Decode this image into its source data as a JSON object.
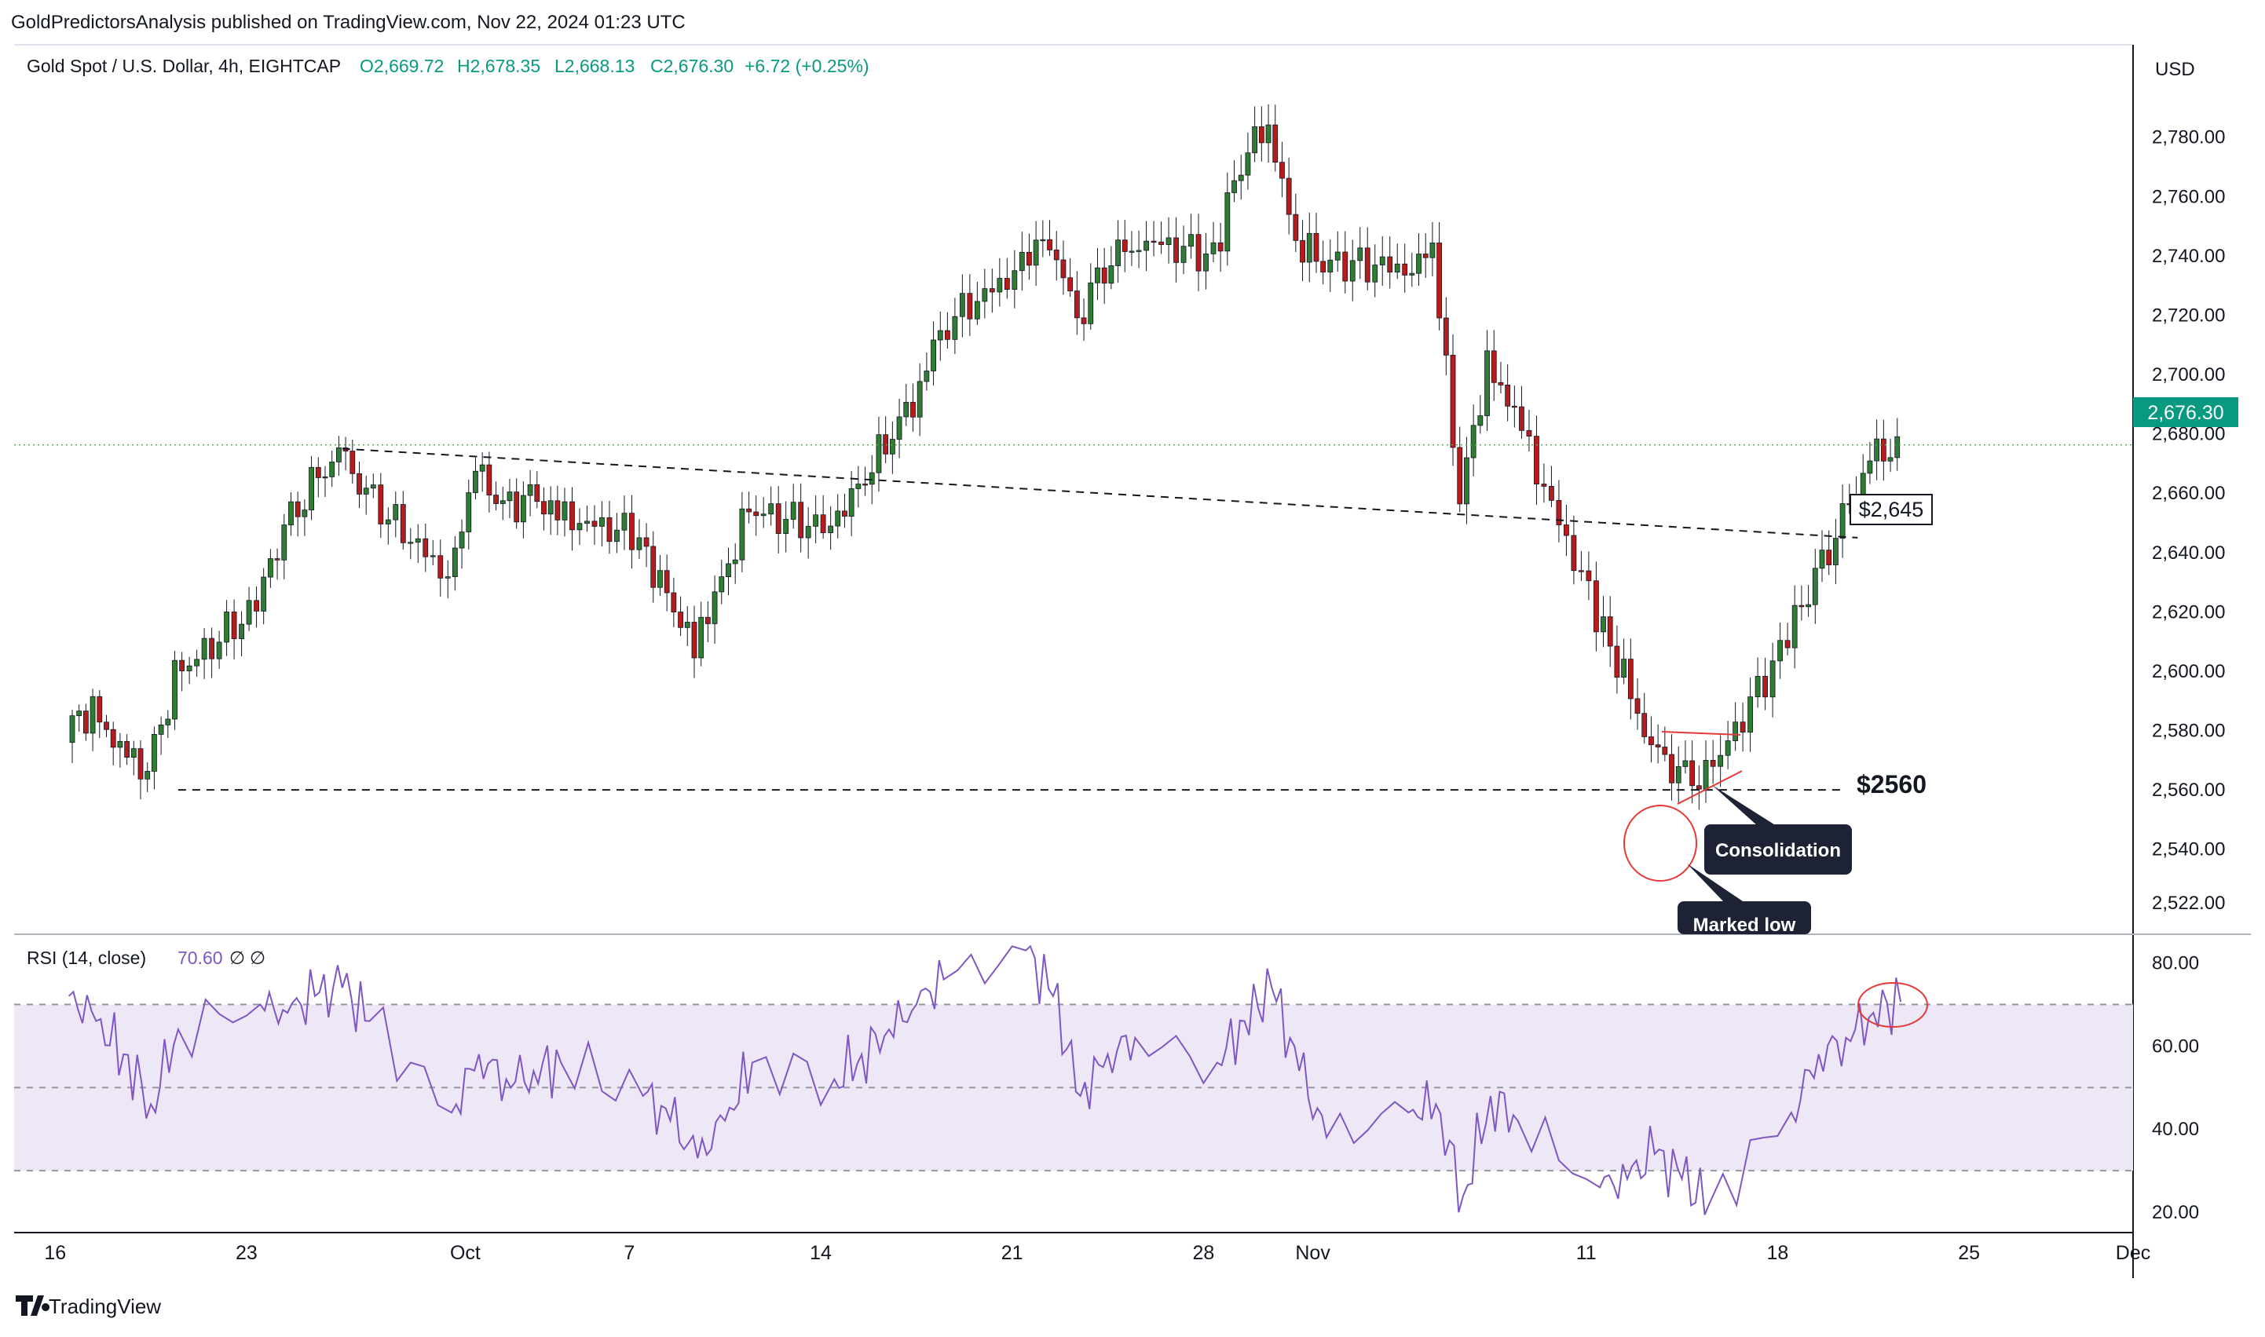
{
  "header": {
    "publisher": "GoldPredictorsAnalysis published on TradingView.com, Nov 22, 2024 01:23 UTC"
  },
  "symbol": {
    "name": "Gold Spot / U.S. Dollar, 4h, EIGHTCAP",
    "open": "O2,669.72",
    "high": "H2,678.35",
    "low": "L2,668.13",
    "close": "C2,676.30",
    "change": "+6.72 (+0.25%)"
  },
  "currency": "USD",
  "last_price_label": "2,676.30",
  "rsi_header": {
    "name": "RSI (14, close)",
    "value": "70.60",
    "extra": [
      "∅",
      "∅"
    ]
  },
  "annotations": {
    "level_2645": "$2,645",
    "level_2560": "$2560",
    "consolidation": "Consolidation",
    "marked_low": "Marked low"
  },
  "footer": {
    "brand": "TradingView"
  },
  "colors": {
    "up": "#26a69a",
    "down": "#ef5350",
    "candle_up": "#2e7d32",
    "candle_down": "#b71c1c",
    "rsi_line": "#7e57c2",
    "rsi_band": "#ede7f6",
    "last_price": "#089981",
    "callout": "#1e2235",
    "highlight_circle": "#e53935",
    "dotted_price": "#4caf50"
  },
  "chart_data": [
    {
      "type": "candlestick",
      "title": "Gold Spot / U.S. Dollar, 4h, EIGHTCAP",
      "ylabel": "USD",
      "ylim": [
        2514,
        2804
      ],
      "y_ticks": [
        "2,522.00",
        "2,540.00",
        "2,560.00",
        "2,580.00",
        "2,600.00",
        "2,620.00",
        "2,640.00",
        "2,660.00",
        "2,680.00",
        "2,700.00",
        "2,720.00",
        "2,740.00",
        "2,760.00",
        "2,780.00"
      ],
      "x_ticks": [
        "16",
        "23",
        "Oct",
        "7",
        "14",
        "21",
        "28",
        "Nov",
        "11",
        "18",
        "25",
        "Dec"
      ],
      "last_price": 2676.3,
      "horizontal_levels": [
        2645,
        2560
      ],
      "price_path": [
        {
          "date": "2024-09-16",
          "close": 2580
        },
        {
          "date": "2024-09-17",
          "close": 2588
        },
        {
          "date": "2024-09-18",
          "close": 2572
        },
        {
          "date": "2024-09-19",
          "close": 2566
        },
        {
          "date": "2024-09-20",
          "close": 2598
        },
        {
          "date": "2024-09-23",
          "close": 2622
        },
        {
          "date": "2024-09-24",
          "close": 2648
        },
        {
          "date": "2024-09-25",
          "close": 2662
        },
        {
          "date": "2024-09-26",
          "close": 2672
        },
        {
          "date": "2024-09-27",
          "close": 2660
        },
        {
          "date": "2024-09-30",
          "close": 2632
        },
        {
          "date": "2024-10-01",
          "close": 2666
        },
        {
          "date": "2024-10-02",
          "close": 2656
        },
        {
          "date": "2024-10-03",
          "close": 2658
        },
        {
          "date": "2024-10-04",
          "close": 2652
        },
        {
          "date": "2024-10-07",
          "close": 2646
        },
        {
          "date": "2024-10-08",
          "close": 2624
        },
        {
          "date": "2024-10-09",
          "close": 2608
        },
        {
          "date": "2024-10-10",
          "close": 2632
        },
        {
          "date": "2024-10-11",
          "close": 2654
        },
        {
          "date": "2024-10-14",
          "close": 2648
        },
        {
          "date": "2024-10-15",
          "close": 2664
        },
        {
          "date": "2024-10-16",
          "close": 2676
        },
        {
          "date": "2024-10-17",
          "close": 2692
        },
        {
          "date": "2024-10-18",
          "close": 2716
        },
        {
          "date": "2024-10-21",
          "close": 2736
        },
        {
          "date": "2024-10-22",
          "close": 2748
        },
        {
          "date": "2024-10-23",
          "close": 2720
        },
        {
          "date": "2024-10-24",
          "close": 2736
        },
        {
          "date": "2024-10-25",
          "close": 2746
        },
        {
          "date": "2024-10-28",
          "close": 2740
        },
        {
          "date": "2024-10-29",
          "close": 2772
        },
        {
          "date": "2024-10-30",
          "close": 2786
        },
        {
          "date": "2024-10-31",
          "close": 2744
        },
        {
          "date": "2024-11-01",
          "close": 2738
        },
        {
          "date": "2024-11-04",
          "close": 2736
        },
        {
          "date": "2024-11-05",
          "close": 2742
        },
        {
          "date": "2024-11-06",
          "close": 2658
        },
        {
          "date": "2024-11-07",
          "close": 2704
        },
        {
          "date": "2024-11-08",
          "close": 2686
        },
        {
          "date": "2024-11-11",
          "close": 2620
        },
        {
          "date": "2024-11-12",
          "close": 2598
        },
        {
          "date": "2024-11-13",
          "close": 2572
        },
        {
          "date": "2024-11-14",
          "close": 2566
        },
        {
          "date": "2024-11-15",
          "close": 2563
        },
        {
          "date": "2024-11-18",
          "close": 2611
        },
        {
          "date": "2024-11-19",
          "close": 2632
        },
        {
          "date": "2024-11-20",
          "close": 2650
        },
        {
          "date": "2024-11-21",
          "close": 2670
        },
        {
          "date": "2024-11-22",
          "close": 2676.3
        }
      ]
    },
    {
      "type": "line",
      "title": "RSI (14, close)",
      "ylim": [
        17,
        85
      ],
      "y_ticks": [
        "20.00",
        "40.00",
        "60.00",
        "80.00"
      ],
      "bands": [
        30,
        50,
        70
      ],
      "last_value": 70.6,
      "series": [
        {
          "values": [
            {
              "date": "2024-09-16",
              "value": 72
            },
            {
              "date": "2024-09-17",
              "value": 66
            },
            {
              "date": "2024-09-18",
              "value": 58
            },
            {
              "date": "2024-09-19",
              "value": 46
            },
            {
              "date": "2024-09-20",
              "value": 64
            },
            {
              "date": "2024-09-23",
              "value": 70
            },
            {
              "date": "2024-09-24",
              "value": 68
            },
            {
              "date": "2024-09-25",
              "value": 72
            },
            {
              "date": "2024-09-26",
              "value": 74
            },
            {
              "date": "2024-09-27",
              "value": 66
            },
            {
              "date": "2024-09-30",
              "value": 44
            },
            {
              "date": "2024-10-01",
              "value": 58
            },
            {
              "date": "2024-10-02",
              "value": 52
            },
            {
              "date": "2024-10-03",
              "value": 54
            },
            {
              "date": "2024-10-04",
              "value": 56
            },
            {
              "date": "2024-10-07",
              "value": 48
            },
            {
              "date": "2024-10-08",
              "value": 42
            },
            {
              "date": "2024-10-09",
              "value": 33
            },
            {
              "date": "2024-10-10",
              "value": 42
            },
            {
              "date": "2024-10-11",
              "value": 56
            },
            {
              "date": "2024-10-14",
              "value": 52
            },
            {
              "date": "2024-10-15",
              "value": 58
            },
            {
              "date": "2024-10-16",
              "value": 64
            },
            {
              "date": "2024-10-17",
              "value": 70
            },
            {
              "date": "2024-10-18",
              "value": 76
            },
            {
              "date": "2024-10-21",
              "value": 83
            },
            {
              "date": "2024-10-22",
              "value": 72
            },
            {
              "date": "2024-10-23",
              "value": 48
            },
            {
              "date": "2024-10-24",
              "value": 58
            },
            {
              "date": "2024-10-25",
              "value": 62
            },
            {
              "date": "2024-10-28",
              "value": 56
            },
            {
              "date": "2024-10-29",
              "value": 66
            },
            {
              "date": "2024-10-30",
              "value": 74
            },
            {
              "date": "2024-10-31",
              "value": 54
            },
            {
              "date": "2024-11-01",
              "value": 38
            },
            {
              "date": "2024-11-04",
              "value": 44
            },
            {
              "date": "2024-11-05",
              "value": 46
            },
            {
              "date": "2024-11-06",
              "value": 24
            },
            {
              "date": "2024-11-07",
              "value": 48
            },
            {
              "date": "2024-11-08",
              "value": 42
            },
            {
              "date": "2024-11-11",
              "value": 26
            },
            {
              "date": "2024-11-12",
              "value": 28
            },
            {
              "date": "2024-11-13",
              "value": 34
            },
            {
              "date": "2024-11-14",
              "value": 28
            },
            {
              "date": "2024-11-15",
              "value": 22
            },
            {
              "date": "2024-11-18",
              "value": 44
            },
            {
              "date": "2024-11-19",
              "value": 58
            },
            {
              "date": "2024-11-20",
              "value": 62
            },
            {
              "date": "2024-11-21",
              "value": 68
            },
            {
              "date": "2024-11-22",
              "value": 70.6
            }
          ]
        }
      ]
    }
  ]
}
